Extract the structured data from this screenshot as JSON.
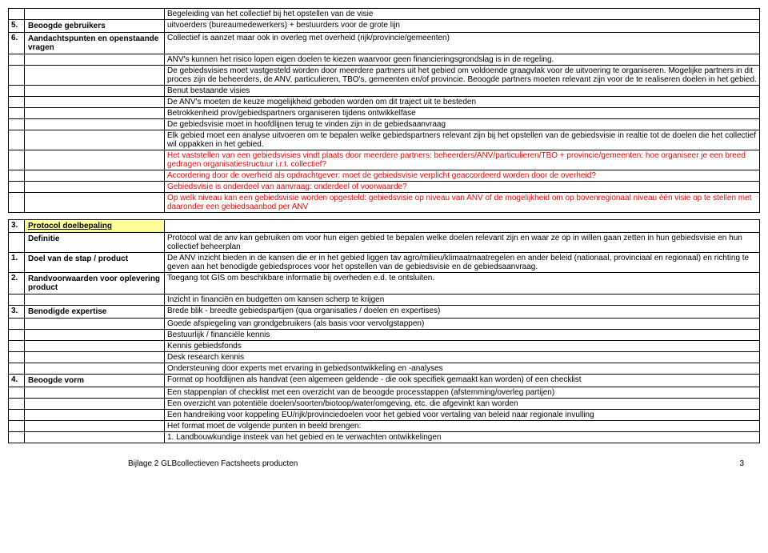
{
  "table1": {
    "row_intro": "Begeleiding van het collectief bij het opstellen van de visie",
    "r5_num": "5.",
    "r5_label": "Beoogde gebruikers",
    "r5_content": "uitvoerders (bureaumedewerkers) + bestuurders voor de grote lijn",
    "r6_num": "6.",
    "r6_label": "Aandachtspunten en openstaande vragen",
    "r6_content": "Collectief is aanzet maar ook in overleg met overheid (rijk/provincie/gemeenten)",
    "rows": [
      "ANV's kunnen het risico lopen eigen doelen te kiezen waarvoor geen financieringsgrondslag is in de regeling.",
      "De gebiedsvisies moet vastgesteld worden door meerdere partners uit het gebied om voldoende graagvlak voor de uitvoering te organiseren. Mogelijke partners in dit proces zijn de beheerders, de ANV, particulieren, TBO's, gemeenten en/of provincie. Beoogde partners moeten relevant zijn voor de te realiseren doelen in het gebied.",
      "Benut bestaande visies",
      "De ANV's moeten de keuze mogelijkheid geboden worden om dit traject uit te besteden",
      "Betrokkenheid prov/gebiedspartners organiseren tijdens ontwikkelfase",
      "De gebiedsvisie moet in hoofdlijnen terug te vinden zijn in de gebiedsaanvraag",
      "Elk gebied moet een analyse uitvoeren om te bepalen welke gebiedspartners relevant zijn bij het opstellen van de gebiedsvisie in realtie tot de doelen die het collectief wil oppakken in het gebied.",
      "Het vaststellen van een gebiedsvisies vindt plaats door meerdere partners: beheerders/ANV/particulieren/TBO + provincie/gemeenten: hoe organiseer je een breed gedragen organisatiestructuur i.r.t. collectief?",
      "Accordering door de overheid als opdrachtgever: moet de gebiedsvisie verplicht geaccordeerd worden door de overheid?",
      "Gebiedsvisie is onderdeel van aanvraag: onderdeel of voorwaarde?",
      "Op welk niveau kan een gebiedsvisie worden opgesteld: gebiedsvisie op niveau van ANV of de mogelijkheid om op bovenregionaal niveau één visie op te stellen met daaronder een gebiedsaanbod per ANV"
    ],
    "red_flags": [
      false,
      false,
      false,
      false,
      false,
      false,
      false,
      true,
      true,
      true,
      true
    ]
  },
  "table2": {
    "s_num": "3.",
    "s_label": "Protocol doelbepaling",
    "def_label": "Definitie",
    "def_content": "Protocol wat de anv kan gebruiken om voor hun eigen gebied te bepalen welke doelen relevant zijn en waar ze op in willen gaan zetten in hun gebiedsvisie en hun collectief beheerplan",
    "r1_num": "1.",
    "r1_label": "Doel van de stap / product",
    "r1_content": "De ANV inzicht bieden in de kansen die er in het gebied liggen tav agro/milieu/klimaatmaatregelen en ander beleid (nationaal, provinciaal en regionaal) en richting te geven aan het benodigde gebiedsproces voor het opstellen van de gebiedsvisie en de gebiedsaanvraag.",
    "r2_num": "2.",
    "r2_label": "Randvoorwaarden voor oplevering product",
    "r2_content": "Toegang tot GIS om beschikbare informatie bij overheden e.d. te ontsluiten.",
    "r2b": "Inzicht in financiën en budgetten om kansen scherp te krijgen",
    "r3_num": "3.",
    "r3_label": "Benodigde expertise",
    "r3_content": "Brede blik - breedte gebiedspartijen (qua organisaties / doelen en expertises)",
    "rows3": [
      "Goede afspiegeling van grondgebruikers (als basis voor vervolgstappen)",
      "Bestuurlijk / financiële kennis",
      "Kennis gebiedsfonds",
      "Desk research kennis",
      "Ondersteuning door experts met ervaring in gebiedsontwikkeling en -analyses"
    ],
    "r4_num": "4.",
    "r4_label": "Beoogde vorm",
    "r4_content": "Format op hoofdlijnen als handvat (een algemeen geldende - die ook specifiek gemaakt kan worden) of een checklist",
    "rows4": [
      "Een stappenplan of checklist met een overzicht van de beoogde processtappen (afstemming/overleg partijen)",
      "Een overzicht van potentiële doelen/soorten/biotoop/water/omgeving, etc. die afgevinkt kan worden",
      "Een handreiking voor koppeling EU/rijk/provinciedoelen voor het gebied voor vertaling van beleid naar regionale invulling",
      "Het format moet de volgende punten in beeld brengen:",
      "1. Landbouwkundige insteek van het gebied en te verwachten ontwikkelingen"
    ]
  },
  "footer": {
    "text": "Bijlage 2 GLBcollectieven Factsheets producten",
    "page": "3"
  }
}
